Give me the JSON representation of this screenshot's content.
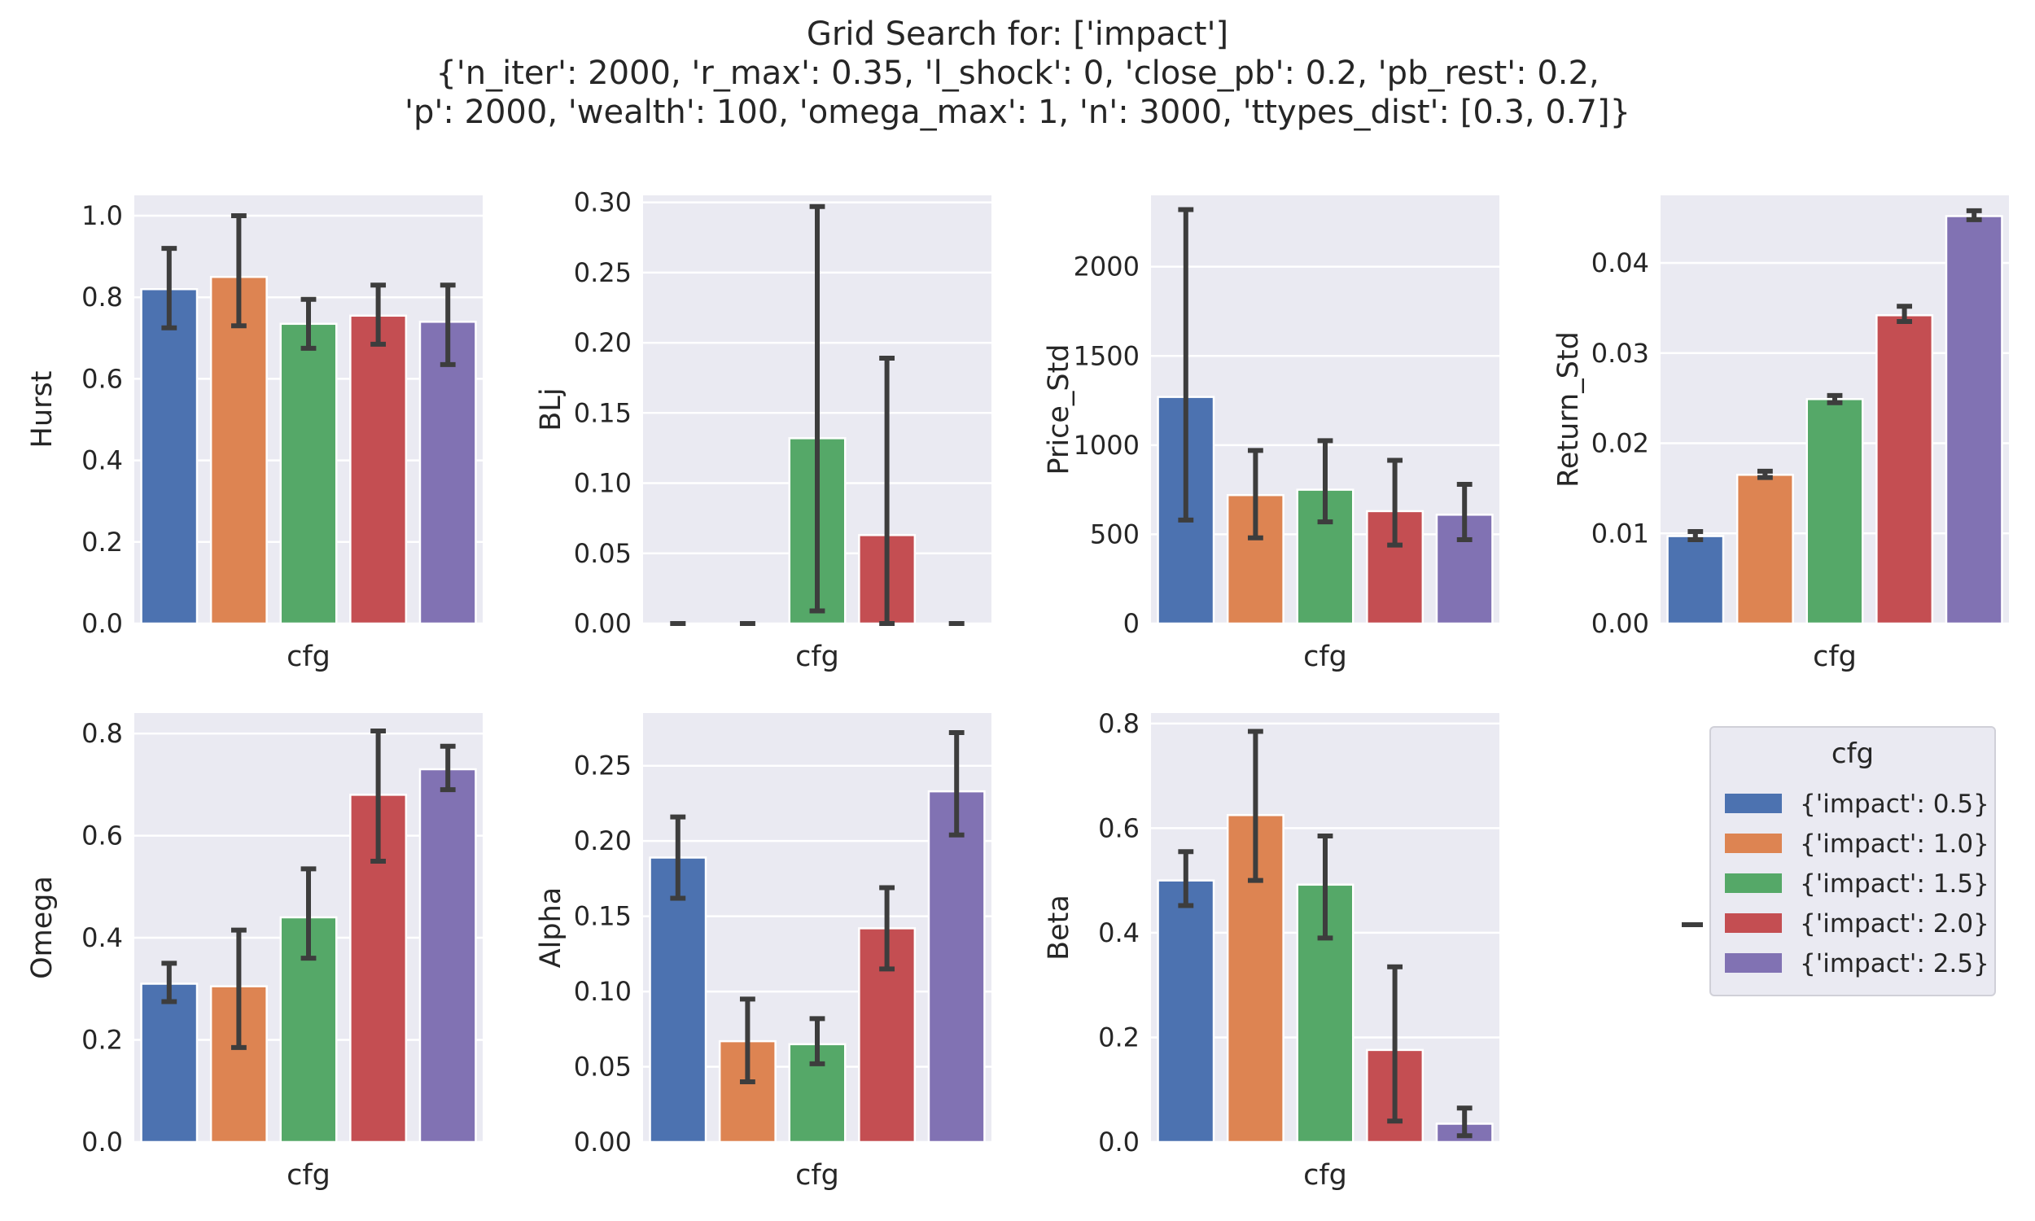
{
  "figure": {
    "title_lines": [
      "Grid Search for: ['impact']",
      "{'n_iter': 2000, 'r_max': 0.35, 'l_shock': 0, 'close_pb': 0.2, 'pb_rest': 0.2,",
      "'p': 2000, 'wealth': 100, 'omega_max': 1, 'n': 3000, 'ttypes_dist': [0.3, 0.7]}"
    ]
  },
  "colors": [
    "#4c72b0",
    "#dd8452",
    "#55a868",
    "#c44e52",
    "#8172b3"
  ],
  "legend": {
    "title": "cfg",
    "entries": [
      "{'impact': 0.5}",
      "{'impact': 1.0}",
      "{'impact': 1.5}",
      "{'impact': 2.0}",
      "{'impact': 2.5}"
    ]
  },
  "chart_data": [
    {
      "type": "bar",
      "ylabel": "Hurst",
      "xlabel": "cfg",
      "ylim": [
        0,
        1.05
      ],
      "yticks": [
        0,
        0.2,
        0.4,
        0.6,
        0.8,
        1.0
      ],
      "ytick_labels": [
        "0.0",
        "0.2",
        "0.4",
        "0.6",
        "0.8",
        "1.0"
      ],
      "categories": [
        "{'impact': 0.5}",
        "{'impact': 1.0}",
        "{'impact': 1.5}",
        "{'impact': 2.0}",
        "{'impact': 2.5}"
      ],
      "values": [
        0.82,
        0.85,
        0.735,
        0.755,
        0.74
      ],
      "err_low": [
        0.725,
        0.73,
        0.675,
        0.685,
        0.635
      ],
      "err_high": [
        0.92,
        1.0,
        0.795,
        0.83,
        0.83
      ]
    },
    {
      "type": "bar",
      "ylabel": "BLj",
      "xlabel": "cfg",
      "ylim": [
        0,
        0.305
      ],
      "yticks": [
        0,
        0.05,
        0.1,
        0.15,
        0.2,
        0.25,
        0.3
      ],
      "ytick_labels": [
        "0.00",
        "0.05",
        "0.10",
        "0.15",
        "0.20",
        "0.25",
        "0.30"
      ],
      "categories": [
        "{'impact': 0.5}",
        "{'impact': 1.0}",
        "{'impact': 1.5}",
        "{'impact': 2.0}",
        "{'impact': 2.5}"
      ],
      "values": [
        0.0,
        0.0,
        0.132,
        0.063,
        0.0
      ],
      "err_low": [
        0.0,
        0.0,
        0.009,
        0.0,
        0.0
      ],
      "err_high": [
        0.0,
        0.0,
        0.297,
        0.189,
        0.0
      ]
    },
    {
      "type": "bar",
      "ylabel": "Price_Std",
      "xlabel": "cfg",
      "ylim": [
        0,
        2400
      ],
      "yticks": [
        0,
        500,
        1000,
        1500,
        2000
      ],
      "ytick_labels": [
        "0",
        "500",
        "1000",
        "1500",
        "2000"
      ],
      "categories": [
        "{'impact': 0.5}",
        "{'impact': 1.0}",
        "{'impact': 1.5}",
        "{'impact': 2.0}",
        "{'impact': 2.5}"
      ],
      "values": [
        1270,
        720,
        750,
        630,
        610
      ],
      "err_low": [
        580,
        480,
        570,
        440,
        470
      ],
      "err_high": [
        2320,
        970,
        1025,
        915,
        780
      ]
    },
    {
      "type": "bar",
      "ylabel": "Return_Std",
      "xlabel": "cfg",
      "ylim": [
        0,
        0.0475
      ],
      "yticks": [
        0,
        0.01,
        0.02,
        0.03,
        0.04
      ],
      "ytick_labels": [
        "0.00",
        "0.01",
        "0.02",
        "0.03",
        "0.04"
      ],
      "categories": [
        "{'impact': 0.5}",
        "{'impact': 1.0}",
        "{'impact': 1.5}",
        "{'impact': 2.0}",
        "{'impact': 2.5}"
      ],
      "values": [
        0.0097,
        0.0165,
        0.0249,
        0.0342,
        0.0452
      ],
      "err_low": [
        0.0093,
        0.0162,
        0.0245,
        0.0335,
        0.0448
      ],
      "err_high": [
        0.0102,
        0.0169,
        0.0253,
        0.0352,
        0.0458
      ]
    },
    {
      "type": "bar",
      "ylabel": "Omega",
      "xlabel": "cfg",
      "ylim": [
        0,
        0.84
      ],
      "yticks": [
        0,
        0.2,
        0.4,
        0.6,
        0.8
      ],
      "ytick_labels": [
        "0.0",
        "0.2",
        "0.4",
        "0.6",
        "0.8"
      ],
      "categories": [
        "{'impact': 0.5}",
        "{'impact': 1.0}",
        "{'impact': 1.5}",
        "{'impact': 2.0}",
        "{'impact': 2.5}"
      ],
      "values": [
        0.31,
        0.305,
        0.44,
        0.68,
        0.73
      ],
      "err_low": [
        0.275,
        0.185,
        0.36,
        0.55,
        0.69
      ],
      "err_high": [
        0.35,
        0.415,
        0.535,
        0.805,
        0.775
      ]
    },
    {
      "type": "bar",
      "ylabel": "Alpha",
      "xlabel": "cfg",
      "ylim": [
        0,
        0.285
      ],
      "yticks": [
        0,
        0.05,
        0.1,
        0.15,
        0.2,
        0.25
      ],
      "ytick_labels": [
        "0.00",
        "0.05",
        "0.10",
        "0.15",
        "0.20",
        "0.25"
      ],
      "categories": [
        "{'impact': 0.5}",
        "{'impact': 1.0}",
        "{'impact': 1.5}",
        "{'impact': 2.0}",
        "{'impact': 2.5}"
      ],
      "values": [
        0.189,
        0.067,
        0.065,
        0.142,
        0.233
      ],
      "err_low": [
        0.162,
        0.04,
        0.052,
        0.115,
        0.204
      ],
      "err_high": [
        0.216,
        0.095,
        0.082,
        0.169,
        0.272
      ]
    },
    {
      "type": "bar",
      "ylabel": "Beta",
      "xlabel": "cfg",
      "ylim": [
        0,
        0.82
      ],
      "yticks": [
        0,
        0.2,
        0.4,
        0.6,
        0.8
      ],
      "ytick_labels": [
        "0.0",
        "0.2",
        "0.4",
        "0.6",
        "0.8"
      ],
      "categories": [
        "{'impact': 0.5}",
        "{'impact': 1.0}",
        "{'impact': 1.5}",
        "{'impact': 2.0}",
        "{'impact': 2.5}"
      ],
      "values": [
        0.5,
        0.625,
        0.492,
        0.176,
        0.035
      ],
      "err_low": [
        0.452,
        0.5,
        0.39,
        0.04,
        0.012
      ],
      "err_high": [
        0.555,
        0.785,
        0.585,
        0.335,
        0.065
      ]
    }
  ]
}
